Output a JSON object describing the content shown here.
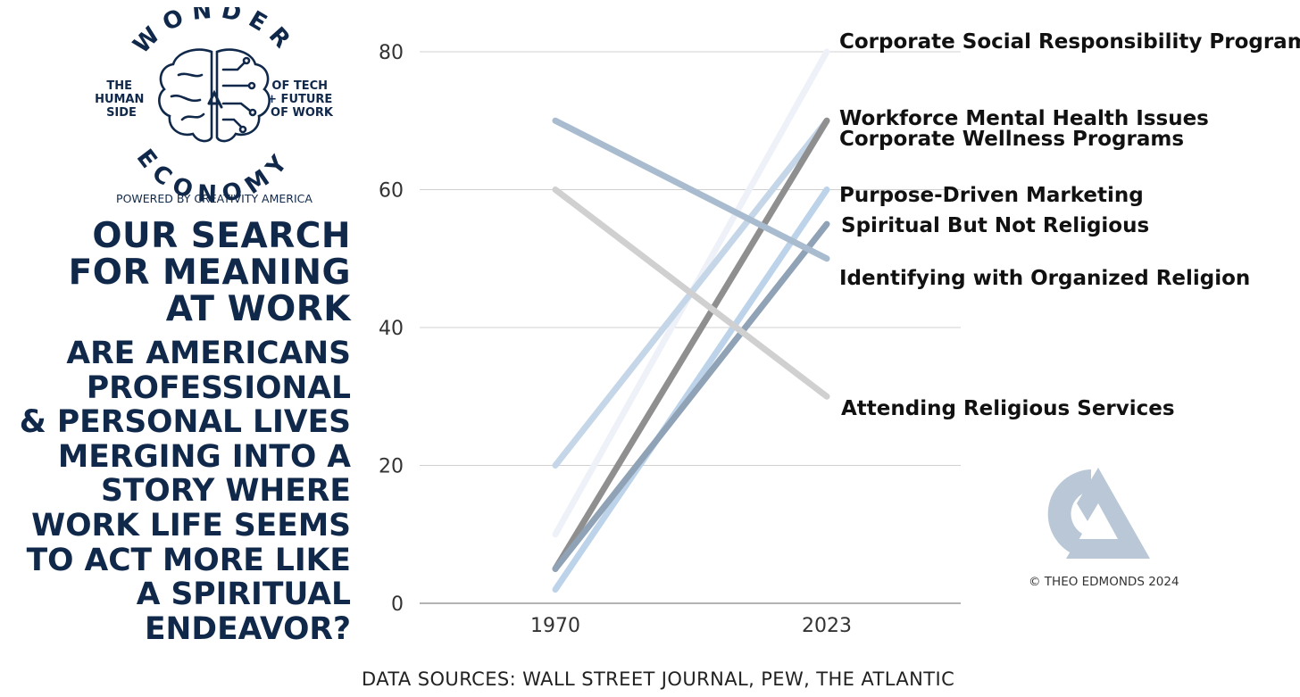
{
  "logo": {
    "arc_top": "WONDER",
    "arc_bottom": "ECONOMY",
    "left_lines": [
      "THE",
      "HUMAN",
      "SIDE"
    ],
    "right_lines": [
      "OF TECH",
      "+ FUTURE",
      "OF WORK"
    ],
    "powered_by": "POWERED BY CREATIVITY AMERICA",
    "icon": "brain-circuit-icon"
  },
  "headline": [
    "OUR SEARCH",
    "FOR MEANING",
    "AT WORK"
  ],
  "question": [
    "ARE AMERICANS",
    "PROFESSIONAL",
    "& PERSONAL LIVES",
    "MERGING INTO A",
    "STORY WHERE",
    "WORK LIFE SEEMS",
    "TO ACT MORE LIKE",
    "A SPIRITUAL",
    "ENDEAVOR?"
  ],
  "copyright": "© THEO EDMONDS 2024",
  "sources": "DATA SOURCES: WALL STREET JOURNAL, PEW, THE ATLANTIC",
  "brand_mark": "ca-monogram-icon",
  "colors": {
    "navy": "#10284a",
    "grid": "#d0d0d0",
    "axis": "#9a9a9a"
  },
  "chart_data": {
    "type": "line",
    "x": [
      "1970",
      "2023"
    ],
    "ylim": [
      0,
      80
    ],
    "yticks": [
      0,
      20,
      40,
      60,
      80
    ],
    "grid": true,
    "legend": "direct labels at right",
    "series": [
      {
        "name": "Corporate Social Responsibility Programs",
        "values": [
          10,
          80
        ],
        "color": "#eef2f8"
      },
      {
        "name": "Workforce Mental Health Issues",
        "values": [
          20,
          70
        ],
        "color": "#c5d6e8"
      },
      {
        "name": "Corporate Wellness Programs",
        "values": [
          5,
          70
        ],
        "color": "#8f8f8f"
      },
      {
        "name": "Purpose-Driven Marketing",
        "values": [
          2,
          60
        ],
        "color": "#bcd3ea"
      },
      {
        "name": "Spiritual But Not Religious",
        "values": [
          5,
          55
        ],
        "color": "#8fa2b6"
      },
      {
        "name": "Identifying with Organized Religion",
        "values": [
          70,
          50
        ],
        "color": "#a9bccf"
      },
      {
        "name": "Attending Religious Services",
        "values": [
          60,
          30
        ],
        "color": "#d0d0d0"
      }
    ]
  }
}
